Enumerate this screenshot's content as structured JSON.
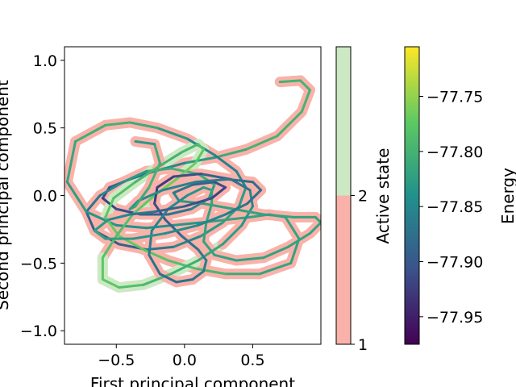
{
  "chart_data": {
    "type": "line",
    "title": "",
    "xlabel": "First principal component",
    "ylabel": "Second principal component",
    "xlim": [
      -0.88,
      1.0
    ],
    "ylim": [
      -1.1,
      1.1
    ],
    "xticks": [
      -0.5,
      0.0,
      0.5
    ],
    "xtick_labels": [
      "−0.5",
      "0.0",
      "0.5"
    ],
    "yticks": [
      -1.0,
      -0.5,
      0.0,
      0.5,
      1.0
    ],
    "ytick_labels": [
      "−1.0",
      "−0.5",
      "0.0",
      "0.5",
      "1.0"
    ],
    "grid": false,
    "halo_encoding": "Active state",
    "line_encoding": "Energy",
    "trajectory": {
      "x": [
        0.7,
        0.85,
        0.92,
        0.86,
        0.68,
        0.45,
        0.22,
        0.0,
        -0.22,
        -0.4,
        -0.55,
        -0.6,
        -0.5,
        -0.32,
        -0.12,
        0.05,
        0.18,
        0.22,
        0.1,
        -0.1,
        -0.28,
        -0.45,
        -0.62,
        -0.72,
        -0.66,
        -0.48,
        -0.28,
        -0.08,
        0.12,
        0.28,
        0.4,
        0.45,
        0.38,
        0.22,
        0.02,
        -0.2,
        -0.4,
        -0.58,
        -0.8,
        -0.86,
        -0.72,
        -0.5,
        -0.28,
        -0.08,
        0.12,
        0.3,
        0.48,
        0.62,
        0.74,
        0.84,
        0.78,
        0.55,
        0.3,
        0.08,
        -0.12,
        -0.3,
        -0.48,
        -0.58,
        -0.52,
        -0.36,
        -0.18,
        -0.02,
        0.1,
        0.14,
        0.08,
        -0.06,
        -0.22,
        -0.38,
        -0.5,
        -0.6,
        -0.6,
        -0.48,
        -0.3,
        -0.1,
        0.1,
        0.28,
        0.42,
        0.5,
        0.48,
        0.34,
        0.12,
        -0.08,
        -0.2,
        -0.22,
        -0.14,
        -0.02,
        0.1,
        0.16,
        0.14,
        0.06,
        -0.06,
        -0.18,
        -0.26,
        -0.24,
        -0.12,
        0.02,
        0.14,
        0.2,
        0.2,
        0.16,
        0.14,
        0.22,
        0.38,
        0.58,
        0.76,
        0.92,
        1.0,
        0.96,
        0.8,
        0.58,
        0.36,
        0.14,
        -0.04,
        -0.08,
        0.06,
        0.22,
        0.3,
        0.2,
        0.0,
        -0.22,
        -0.4,
        -0.56,
        -0.66,
        -0.58,
        -0.38,
        -0.14,
        0.1,
        0.3,
        0.46,
        0.56,
        0.5,
        0.32,
        0.08,
        -0.16,
        -0.34,
        -0.4,
        -0.36,
        -0.26,
        -0.18,
        -0.22,
        -0.36
      ],
      "y": [
        0.84,
        0.85,
        0.78,
        0.62,
        0.44,
        0.34,
        0.28,
        0.24,
        0.18,
        0.12,
        0.06,
        -0.02,
        -0.1,
        -0.14,
        -0.14,
        -0.1,
        -0.02,
        0.08,
        0.16,
        0.2,
        0.18,
        0.1,
        0.0,
        -0.12,
        -0.26,
        -0.36,
        -0.4,
        -0.38,
        -0.3,
        -0.2,
        -0.08,
        0.06,
        0.18,
        0.3,
        0.42,
        0.5,
        0.54,
        0.52,
        0.4,
        0.1,
        -0.12,
        -0.22,
        -0.24,
        -0.22,
        -0.2,
        -0.18,
        -0.16,
        -0.14,
        -0.16,
        -0.32,
        -0.5,
        -0.58,
        -0.58,
        -0.54,
        -0.48,
        -0.4,
        -0.3,
        -0.16,
        -0.02,
        0.1,
        0.22,
        0.32,
        0.38,
        0.34,
        0.24,
        0.12,
        0.0,
        -0.14,
        -0.3,
        -0.46,
        -0.62,
        -0.68,
        -0.66,
        -0.58,
        -0.48,
        -0.36,
        -0.22,
        -0.08,
        0.04,
        0.12,
        0.16,
        0.14,
        0.06,
        -0.06,
        -0.18,
        -0.3,
        -0.4,
        -0.48,
        -0.56,
        -0.62,
        -0.64,
        -0.58,
        -0.44,
        -0.26,
        -0.1,
        0.0,
        0.06,
        0.04,
        -0.06,
        -0.2,
        -0.34,
        -0.44,
        -0.48,
        -0.46,
        -0.38,
        -0.28,
        -0.2,
        -0.16,
        -0.16,
        -0.14,
        -0.1,
        -0.06,
        -0.04,
        0.02,
        0.08,
        0.1,
        0.06,
        -0.02,
        -0.08,
        -0.12,
        -0.14,
        -0.18,
        -0.26,
        -0.32,
        -0.32,
        -0.28,
        -0.22,
        -0.14,
        -0.06,
        0.04,
        0.1,
        0.12,
        0.1,
        0.04,
        -0.04,
        -0.1,
        -0.08,
        0.06,
        0.24,
        0.38,
        0.4
      ],
      "active_state": [
        1,
        1,
        1,
        1,
        1,
        1,
        1,
        1,
        1,
        1,
        1,
        1,
        1,
        1,
        1,
        1,
        1,
        1,
        1,
        1,
        1,
        1,
        1,
        1,
        1,
        1,
        1,
        1,
        1,
        1,
        1,
        1,
        1,
        1,
        1,
        1,
        1,
        1,
        1,
        1,
        1,
        1,
        1,
        1,
        1,
        1,
        1,
        1,
        1,
        1,
        1,
        1,
        1,
        1,
        1,
        1,
        1,
        2,
        2,
        2,
        2,
        2,
        2,
        2,
        2,
        2,
        2,
        1,
        1,
        2,
        2,
        2,
        2,
        2,
        2,
        1,
        1,
        1,
        1,
        1,
        1,
        1,
        1,
        1,
        1,
        1,
        1,
        1,
        1,
        1,
        1,
        1,
        1,
        1,
        1,
        1,
        1,
        1,
        1,
        1,
        1,
        1,
        1,
        1,
        1,
        1,
        1,
        1,
        1,
        1,
        1,
        1,
        1,
        1,
        1,
        1,
        1,
        1,
        1,
        1,
        1,
        1,
        1,
        1,
        1,
        1,
        1,
        1,
        1,
        1,
        1,
        1,
        1,
        1,
        1,
        1,
        1,
        1,
        1,
        1,
        1
      ],
      "energy": [
        -77.8,
        -77.8,
        -77.8,
        -77.8,
        -77.8,
        -77.8,
        -77.82,
        -77.84,
        -77.86,
        -77.88,
        -77.9,
        -77.92,
        -77.92,
        -77.9,
        -77.88,
        -77.86,
        -77.84,
        -77.82,
        -77.8,
        -77.8,
        -77.82,
        -77.84,
        -77.86,
        -77.88,
        -77.9,
        -77.9,
        -77.88,
        -77.86,
        -77.84,
        -77.82,
        -77.82,
        -77.84,
        -77.86,
        -77.86,
        -77.84,
        -77.82,
        -77.8,
        -77.8,
        -77.81,
        -77.82,
        -77.83,
        -77.84,
        -77.84,
        -77.84,
        -77.83,
        -77.82,
        -77.82,
        -77.82,
        -77.82,
        -77.82,
        -77.82,
        -77.82,
        -77.8,
        -77.79,
        -77.78,
        -77.78,
        -77.77,
        -77.77,
        -77.78,
        -77.79,
        -77.8,
        -77.8,
        -77.79,
        -77.78,
        -77.77,
        -77.76,
        -77.77,
        -77.78,
        -77.79,
        -77.78,
        -77.77,
        -77.78,
        -77.79,
        -77.8,
        -77.81,
        -77.82,
        -77.83,
        -77.84,
        -77.86,
        -77.88,
        -77.9,
        -77.92,
        -77.93,
        -77.92,
        -77.9,
        -77.88,
        -77.87,
        -77.86,
        -77.86,
        -77.87,
        -77.88,
        -77.88,
        -77.87,
        -77.86,
        -77.85,
        -77.84,
        -77.83,
        -77.82,
        -77.82,
        -77.82,
        -77.82,
        -77.82,
        -77.82,
        -77.82,
        -77.82,
        -77.82,
        -77.82,
        -77.82,
        -77.82,
        -77.82,
        -77.82,
        -77.82,
        -77.84,
        -77.86,
        -77.88,
        -77.9,
        -77.92,
        -77.92,
        -77.9,
        -77.88,
        -77.86,
        -77.84,
        -77.82,
        -77.82,
        -77.83,
        -77.84,
        -77.85,
        -77.86,
        -77.87,
        -77.88,
        -77.88,
        -77.87,
        -77.86,
        -77.85,
        -77.84,
        -77.83,
        -77.82,
        -77.8,
        -77.8,
        -77.82,
        -77.84
      ]
    },
    "state_colorbar": {
      "label": "Active state",
      "range": [
        1,
        3
      ],
      "tick_values": [
        1,
        2
      ],
      "tick_labels": [
        "1",
        "2"
      ],
      "colors": [
        "#f9b2aa",
        "#cce9c3"
      ]
    },
    "energy_colorbar": {
      "label": "Energy",
      "colormap": "viridis",
      "range": [
        -77.975,
        -77.705
      ],
      "tick_values": [
        -77.95,
        -77.9,
        -77.85,
        -77.8,
        -77.75
      ],
      "tick_labels": [
        "−77.95",
        "−77.90",
        "−77.85",
        "−77.80",
        "−77.75"
      ]
    }
  }
}
